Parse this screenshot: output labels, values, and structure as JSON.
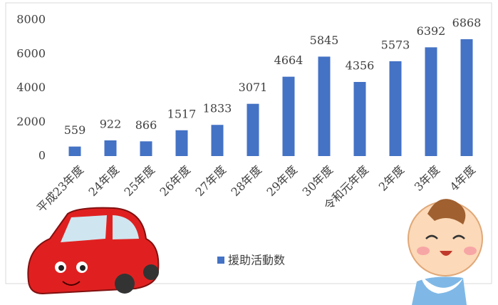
{
  "chart_data": {
    "type": "bar",
    "categories": [
      "平成23年度",
      "24年度",
      "25年度",
      "26年度",
      "27年度",
      "28年度",
      "29年度",
      "30年度",
      "令和元年度",
      "2年度",
      "3年度",
      "4年度"
    ],
    "series": [
      {
        "name": "援助活動数",
        "color": "#4472c4",
        "values": [
          559,
          922,
          866,
          1517,
          1833,
          3071,
          4664,
          5845,
          4356,
          5573,
          6392,
          6868
        ]
      }
    ],
    "ylim": [
      0,
      8000
    ],
    "yticks": [
      0,
      2000,
      4000,
      6000,
      8000
    ],
    "data_labels": true,
    "legend": "bottom"
  }
}
